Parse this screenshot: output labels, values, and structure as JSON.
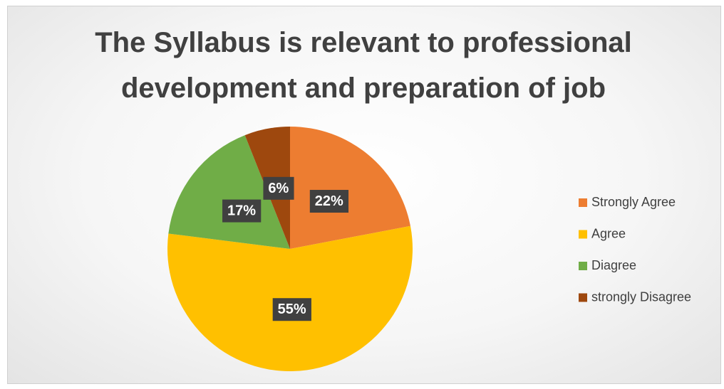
{
  "chart_data": {
    "type": "pie",
    "title": "The Syllabus is relevant to professional development and preparation of job",
    "categories": [
      "Strongly Agree",
      "Agree",
      "Diagree",
      "strongly Disagree"
    ],
    "values": [
      22,
      55,
      17,
      6
    ],
    "value_labels": [
      "22%",
      "55%",
      "17%",
      "6%"
    ],
    "colors": [
      "#ed7d31",
      "#ffc000",
      "#70ad47",
      "#9e480e"
    ],
    "legend": "right"
  }
}
